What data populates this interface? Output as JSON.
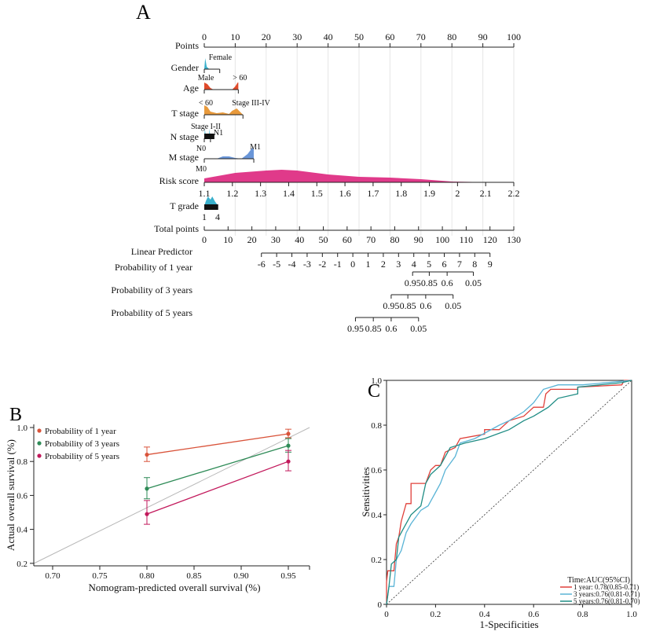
{
  "panels": {
    "a": "A",
    "b": "B",
    "c": "C"
  },
  "chart_data": [
    {
      "type": "nomogram",
      "points_axis": {
        "label": "Points",
        "range": [
          0,
          100
        ],
        "ticks": [
          0,
          10,
          20,
          30,
          40,
          50,
          60,
          70,
          80,
          90,
          100
        ]
      },
      "variables": [
        {
          "label": "Gender",
          "max_points": 5,
          "color": "#3ab0cc",
          "annotations": [
            {
              "text": "Female",
              "at": 5,
              "pos": "above"
            }
          ]
        },
        {
          "label": "Age",
          "max_points": 11,
          "color": "#e04a2a",
          "annotations": [
            {
              "text": "Male",
              "at": 0,
              "pos": "above"
            },
            {
              "text": "> 60",
              "at": 11,
              "pos": "above"
            }
          ]
        },
        {
          "label": "T stage",
          "max_points": 12.5,
          "color": "#e89a3c",
          "annotations": [
            {
              "text": "< 60",
              "at": 0,
              "pos": "above"
            },
            {
              "text": "Stage III-IV",
              "at": 12.5,
              "pos": "above"
            }
          ]
        },
        {
          "label": "N stage",
          "max_points": 2,
          "color": "#3ab0cc",
          "annotations": [
            {
              "text": "Stage I-II",
              "at": 0,
              "pos": "above"
            },
            {
              "text": "N1",
              "at": 2,
              "pos": "right"
            },
            {
              "text": "N0",
              "at": 0,
              "pos": "below"
            }
          ]
        },
        {
          "label": "M stage",
          "max_points": 16,
          "color": "#6a96d8",
          "annotations": [
            {
              "text": "M1",
              "at": 16,
              "pos": "above"
            },
            {
              "text": "M0",
              "at": 0,
              "pos": "below"
            }
          ]
        }
      ],
      "risk_score": {
        "label": "Risk score",
        "color": "#e03a8a",
        "ticks": [
          "1.1",
          "1.2",
          "1.3",
          "1.4",
          "1.5",
          "1.6",
          "1.7",
          "1.8",
          "1.9",
          "2",
          "2.1",
          "2.2"
        ]
      },
      "t_grade": {
        "label": "T grade",
        "color": "#3ab0cc",
        "ticks": [
          "1",
          "4"
        ],
        "max_points": 4.5
      },
      "total_points": {
        "label": "Total points",
        "range": [
          0,
          130
        ],
        "ticks": [
          0,
          10,
          20,
          30,
          40,
          50,
          60,
          70,
          80,
          90,
          100,
          110,
          120,
          130
        ]
      },
      "linear_predictor": {
        "label": "Linear Predictor",
        "ticks": [
          -6,
          -5,
          -4,
          -3,
          -2,
          -1,
          0,
          1,
          2,
          3,
          4,
          5,
          6,
          7,
          8,
          9
        ],
        "total_points_range": [
          24,
          120
        ]
      },
      "probabilities": [
        {
          "label": "Probability of 1 year",
          "ticks": [
            {
              "text": "0.95",
              "total_points": 87.5
            },
            {
              "text": "0.85",
              "total_points": 94.5
            },
            {
              "text": "0.6",
              "total_points": 102
            },
            {
              "text": "0.05",
              "total_points": 113
            }
          ]
        },
        {
          "label": "Probability of 3 years",
          "ticks": [
            {
              "text": "0.95",
              "total_points": 78.5
            },
            {
              "text": "0.85",
              "total_points": 85.5
            },
            {
              "text": "0.6",
              "total_points": 93
            },
            {
              "text": "0.05",
              "total_points": 104.5
            }
          ]
        },
        {
          "label": "Probability of 5 years",
          "ticks": [
            {
              "text": "0.95",
              "total_points": 63.5
            },
            {
              "text": "0.85",
              "total_points": 71
            },
            {
              "text": "0.6",
              "total_points": 78.5
            },
            {
              "text": "0.05",
              "total_points": 90
            }
          ]
        }
      ]
    },
    {
      "type": "line",
      "xlabel": "Nomogram-predicted overall survival (%)",
      "ylabel": "Actual overall survival (%)",
      "xlim": [
        0.68,
        0.97
      ],
      "ylim": [
        0.186,
        1.0
      ],
      "xticks": [
        "0.70",
        "0.75",
        "0.80",
        "0.85",
        "0.90",
        "0.95"
      ],
      "yticks": [
        "0.2",
        "0.4",
        "0.6",
        "0.8",
        "1.0"
      ],
      "legend_position": "top-left",
      "reference_line_color": "#b8b8b8",
      "series": [
        {
          "name": "Probability of 1 year",
          "color": "#d9533a",
          "points": [
            {
              "x": 0.8,
              "y": 0.84,
              "lo": 0.8,
              "hi": 0.885
            },
            {
              "x": 0.95,
              "y": 0.963,
              "lo": 0.94,
              "hi": 0.99
            }
          ]
        },
        {
          "name": "Probability of 3 years",
          "color": "#2e8b57",
          "points": [
            {
              "x": 0.8,
              "y": 0.64,
              "lo": 0.58,
              "hi": 0.705
            },
            {
              "x": 0.95,
              "y": 0.893,
              "lo": 0.855,
              "hi": 0.935
            }
          ]
        },
        {
          "name": "Probability of 5 years",
          "color": "#c2185b",
          "points": [
            {
              "x": 0.8,
              "y": 0.49,
              "lo": 0.43,
              "hi": 0.57
            },
            {
              "x": 0.95,
              "y": 0.8,
              "lo": 0.745,
              "hi": 0.865
            }
          ]
        }
      ]
    },
    {
      "type": "line",
      "xlabel": "1-Specificities",
      "ylabel": "Sensitivities",
      "xlim": [
        0,
        1
      ],
      "ylim": [
        0,
        1
      ],
      "xticks": [
        "0",
        "0.2",
        "0.4",
        "0.6",
        "0.8",
        "1.0"
      ],
      "yticks": [
        "0",
        "0.2",
        "0.4",
        "0.6",
        "0.8",
        "1.0"
      ],
      "legend_title": "Time:AUC(95%CI)",
      "legend_position": "bottom-right",
      "series": [
        {
          "name": "1 year: 0.78(0.85-0.71)",
          "color": "#e0403a",
          "points": [
            [
              0,
              0
            ],
            [
              0,
              0.1
            ],
            [
              0.005,
              0.15
            ],
            [
              0.03,
              0.15
            ],
            [
              0.04,
              0.27
            ],
            [
              0.05,
              0.3
            ],
            [
              0.06,
              0.37
            ],
            [
              0.08,
              0.45
            ],
            [
              0.1,
              0.45
            ],
            [
              0.1,
              0.54
            ],
            [
              0.16,
              0.54
            ],
            [
              0.18,
              0.6
            ],
            [
              0.2,
              0.62
            ],
            [
              0.22,
              0.62
            ],
            [
              0.24,
              0.68
            ],
            [
              0.28,
              0.7
            ],
            [
              0.3,
              0.74
            ],
            [
              0.4,
              0.76
            ],
            [
              0.4,
              0.78
            ],
            [
              0.46,
              0.78
            ],
            [
              0.5,
              0.82
            ],
            [
              0.56,
              0.84
            ],
            [
              0.6,
              0.88
            ],
            [
              0.64,
              0.88
            ],
            [
              0.65,
              0.94
            ],
            [
              0.67,
              0.96
            ],
            [
              0.78,
              0.96
            ],
            [
              0.78,
              0.97
            ],
            [
              0.96,
              0.98
            ],
            [
              0.97,
              1
            ],
            [
              1,
              1
            ]
          ]
        },
        {
          "name": "3 years:0.76(0.81-0.71)",
          "color": "#5ab4d6",
          "points": [
            [
              0,
              0
            ],
            [
              0.01,
              0.08
            ],
            [
              0.03,
              0.08
            ],
            [
              0.04,
              0.2
            ],
            [
              0.06,
              0.24
            ],
            [
              0.08,
              0.32
            ],
            [
              0.1,
              0.36
            ],
            [
              0.14,
              0.42
            ],
            [
              0.17,
              0.44
            ],
            [
              0.2,
              0.5
            ],
            [
              0.22,
              0.54
            ],
            [
              0.24,
              0.6
            ],
            [
              0.28,
              0.66
            ],
            [
              0.3,
              0.72
            ],
            [
              0.36,
              0.74
            ],
            [
              0.46,
              0.8
            ],
            [
              0.5,
              0.82
            ],
            [
              0.56,
              0.86
            ],
            [
              0.6,
              0.9
            ],
            [
              0.64,
              0.96
            ],
            [
              0.7,
              0.98
            ],
            [
              0.8,
              0.98
            ],
            [
              1,
              1
            ]
          ]
        },
        {
          "name": "5 years:0.76(0.81-0.70)",
          "color": "#1f8c84",
          "points": [
            [
              0,
              0
            ],
            [
              0.01,
              0.08
            ],
            [
              0.02,
              0.18
            ],
            [
              0.04,
              0.2
            ],
            [
              0.05,
              0.3
            ],
            [
              0.07,
              0.34
            ],
            [
              0.1,
              0.4
            ],
            [
              0.14,
              0.44
            ],
            [
              0.16,
              0.54
            ],
            [
              0.18,
              0.58
            ],
            [
              0.22,
              0.62
            ],
            [
              0.26,
              0.7
            ],
            [
              0.32,
              0.72
            ],
            [
              0.4,
              0.74
            ],
            [
              0.5,
              0.78
            ],
            [
              0.56,
              0.82
            ],
            [
              0.6,
              0.84
            ],
            [
              0.66,
              0.88
            ],
            [
              0.7,
              0.92
            ],
            [
              0.78,
              0.94
            ],
            [
              0.78,
              0.97
            ],
            [
              0.96,
              0.99
            ],
            [
              1,
              1
            ]
          ]
        }
      ]
    }
  ]
}
